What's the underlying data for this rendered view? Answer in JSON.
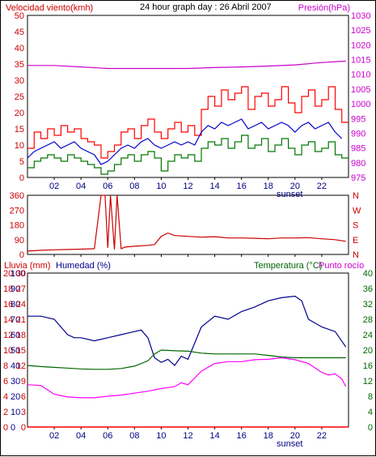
{
  "header": {
    "left_label": "Velocidad viento(kmh)",
    "title": "24 hour graph day : 26 Abril 2007",
    "right_label": "Presión(hPa)"
  },
  "colors": {
    "wind_gust": "#ff0000",
    "wind_avg": "#0000cc",
    "wind_min": "#007700",
    "pressure": "#cc00cc",
    "direction": "#cc0000",
    "humidity": "#00008b",
    "temperature": "#006600",
    "dewpoint": "#ff00ff",
    "rain": "#ff0000",
    "label_left_top": "#cc0000",
    "label_right_top": "#cc00cc",
    "label_humidity": "#00008b",
    "label_rain": "#cc0000",
    "label_temp": "#006600",
    "label_dew": "#cc00cc",
    "axis_time": "#000080"
  },
  "x_ticks": [
    "02",
    "04",
    "06",
    "08",
    "10",
    "12",
    "14",
    "16",
    "18",
    "20",
    "22"
  ],
  "sunset_label": "sunset",
  "chart_data": [
    {
      "type": "line",
      "title": "24 hour graph day : 26 Abril 2007",
      "x_unit": "hour",
      "xlim": [
        0,
        24
      ],
      "y_left": {
        "label": "Velocidad viento(kmh)",
        "ticks": [
          0,
          5,
          10,
          15,
          20,
          25,
          30,
          35,
          40,
          45,
          50
        ],
        "ylim": [
          0,
          50
        ]
      },
      "y_right": {
        "label": "Presión(hPa)",
        "ticks": [
          975,
          980,
          985,
          990,
          995,
          1000,
          1005,
          1010,
          1015,
          1020,
          1025,
          1030
        ],
        "ylim": [
          975,
          1030
        ]
      },
      "series": [
        {
          "key": "gust",
          "axis": "left",
          "x": [
            0,
            0.5,
            1,
            1.5,
            2,
            2.5,
            3,
            3.5,
            4,
            4.5,
            5,
            5.5,
            6,
            6.5,
            7,
            7.5,
            8,
            8.5,
            9,
            9.5,
            10,
            10.5,
            11,
            11.5,
            12,
            12.5,
            13,
            13.5,
            14,
            14.5,
            15,
            15.5,
            16,
            16.5,
            17,
            17.5,
            18,
            18.5,
            19,
            19.5,
            20,
            20.5,
            21,
            21.5,
            22,
            22.5,
            23,
            23.5
          ],
          "y": [
            9,
            14,
            12,
            15,
            13,
            16,
            14,
            15,
            12,
            11,
            10,
            6,
            8,
            10,
            14,
            15,
            12,
            16,
            18,
            14,
            12,
            15,
            17,
            14,
            16,
            13,
            21,
            25,
            22,
            27,
            24,
            26,
            28,
            21,
            25,
            26,
            22,
            24,
            28,
            23,
            20,
            25,
            27,
            22,
            24,
            28,
            21,
            17
          ]
        },
        {
          "key": "avg",
          "axis": "left",
          "x": [
            0,
            0.5,
            1,
            1.5,
            2,
            2.5,
            3,
            3.5,
            4,
            4.5,
            5,
            5.5,
            6,
            6.5,
            7,
            7.5,
            8,
            8.5,
            9,
            9.5,
            10,
            10.5,
            11,
            11.5,
            12,
            12.5,
            13,
            13.5,
            14,
            14.5,
            15,
            15.5,
            16,
            16.5,
            17,
            17.5,
            18,
            18.5,
            19,
            19.5,
            20,
            20.5,
            21,
            21.5,
            22,
            22.5,
            23,
            23.5
          ],
          "y": [
            6,
            8,
            9,
            10,
            11,
            9,
            10,
            11,
            9,
            8,
            7,
            4,
            5,
            7,
            9,
            10,
            9,
            11,
            12,
            10,
            9,
            10,
            11,
            10,
            11,
            10,
            14,
            16,
            15,
            17,
            16,
            17,
            18,
            15,
            16,
            17,
            15,
            16,
            17,
            16,
            14,
            16,
            17,
            15,
            16,
            17,
            14,
            12
          ]
        },
        {
          "key": "min",
          "axis": "left",
          "x": [
            0,
            0.5,
            1,
            1.5,
            2,
            2.5,
            3,
            3.5,
            4,
            4.5,
            5,
            5.5,
            6,
            6.5,
            7,
            7.5,
            8,
            8.5,
            9,
            9.5,
            10,
            10.5,
            11,
            11.5,
            12,
            12.5,
            13,
            13.5,
            14,
            14.5,
            15,
            15.5,
            16,
            16.5,
            17,
            17.5,
            18,
            18.5,
            19,
            19.5,
            20,
            20.5,
            21,
            21.5,
            22,
            22.5,
            23,
            23.5
          ],
          "y": [
            3,
            5,
            6,
            7,
            6,
            5,
            7,
            6,
            5,
            4,
            3,
            1,
            2,
            4,
            6,
            7,
            5,
            7,
            8,
            6,
            2,
            5,
            7,
            6,
            7,
            5,
            9,
            11,
            10,
            12,
            9,
            11,
            13,
            9,
            10,
            12,
            8,
            10,
            12,
            9,
            7,
            10,
            11,
            8,
            9,
            11,
            7,
            6
          ]
        },
        {
          "key": "pressure",
          "axis": "right",
          "x": [
            0,
            2,
            4,
            6,
            8,
            10,
            12,
            14,
            16,
            18,
            20,
            22,
            23.8
          ],
          "y": [
            1013,
            1013,
            1012.5,
            1012,
            1012,
            1012,
            1012,
            1012.3,
            1012.5,
            1012.8,
            1013.2,
            1014,
            1014.5
          ]
        }
      ]
    },
    {
      "type": "line",
      "x_unit": "hour",
      "xlim": [
        0,
        24
      ],
      "y_left": {
        "ticks": [
          0,
          90,
          180,
          270,
          360
        ],
        "ylim": [
          0,
          360
        ]
      },
      "y_right": {
        "ticks": [
          "N",
          "E",
          "S",
          "W",
          "N"
        ]
      },
      "series": [
        {
          "key": "direction",
          "x": [
            0,
            1,
            2,
            3,
            4,
            5,
            5.5,
            5.8,
            6,
            6.2,
            6.5,
            6.7,
            7,
            7.3,
            8,
            9,
            9.5,
            10,
            10.5,
            11,
            12,
            13,
            14,
            15,
            16,
            17,
            18,
            19,
            20,
            21,
            22,
            23,
            23.8
          ],
          "y": [
            20,
            25,
            28,
            30,
            32,
            35,
            360,
            360,
            40,
            360,
            30,
            360,
            35,
            45,
            50,
            55,
            60,
            110,
            130,
            115,
            110,
            105,
            108,
            100,
            100,
            98,
            95,
            100,
            100,
            102,
            95,
            90,
            80
          ]
        }
      ]
    },
    {
      "type": "line",
      "x_unit": "hour",
      "xlim": [
        0,
        24
      ],
      "y_rain": {
        "label": "Lluvia (mm)",
        "ticks": [
          0,
          2,
          4,
          6,
          8,
          10,
          12,
          14,
          16,
          18,
          20
        ],
        "ylim": [
          0,
          20
        ]
      },
      "y_humidity": {
        "label": "Humedad (%)",
        "ticks": [
          0,
          10,
          20,
          30,
          40,
          50,
          60,
          70,
          80,
          90,
          100
        ],
        "ylim": [
          0,
          100
        ]
      },
      "y_left_inner": {
        "ticks": [
          0,
          3,
          6,
          9,
          12,
          15,
          18,
          21,
          24,
          27,
          30
        ],
        "ylim": [
          0,
          30
        ]
      },
      "y_right": {
        "label": "Temperatura (°C)",
        "label2": "Punto rocío",
        "ticks": [
          0,
          4,
          8,
          12,
          16,
          20,
          24,
          28,
          32,
          36,
          40
        ],
        "ylim": [
          0,
          40
        ]
      },
      "series": [
        {
          "key": "humidity",
          "axis": "humidity",
          "x": [
            0,
            1,
            2,
            3,
            3.5,
            4,
            5,
            6,
            7,
            8,
            8.5,
            9,
            9.5,
            10,
            10.5,
            11,
            11.5,
            12,
            13,
            14,
            15,
            16,
            17,
            18,
            19,
            20,
            20.5,
            21,
            22,
            23,
            23.8
          ],
          "y": [
            72,
            72,
            70,
            60,
            58,
            58,
            56,
            58,
            60,
            62,
            63,
            58,
            45,
            42,
            44,
            40,
            46,
            44,
            65,
            72,
            70,
            75,
            78,
            82,
            84,
            85,
            82,
            70,
            65,
            62,
            52
          ]
        },
        {
          "key": "temperature",
          "axis": "right",
          "x": [
            0,
            1,
            2,
            3,
            4,
            5,
            6,
            7,
            8,
            9,
            9.5,
            10,
            11,
            12,
            13,
            14,
            15,
            16,
            17,
            18,
            19,
            20,
            21,
            22,
            23,
            23.8
          ],
          "y": [
            16,
            15.7,
            15.5,
            15.3,
            15.1,
            15,
            15,
            15.2,
            15.8,
            17.2,
            19,
            20,
            19.8,
            19.7,
            19.2,
            19,
            19,
            19,
            19,
            18.6,
            18.2,
            18,
            18,
            18,
            18,
            18
          ]
        },
        {
          "key": "dewpoint",
          "axis": "right",
          "x": [
            0,
            1,
            2,
            3,
            4,
            5,
            6,
            7,
            8,
            9,
            10,
            11,
            11.5,
            12,
            13,
            14,
            15,
            16,
            17,
            18,
            19,
            20,
            21,
            22,
            22.5,
            23,
            23.5,
            23.8
          ],
          "y": [
            11,
            10.8,
            8.5,
            7.8,
            7.6,
            7.6,
            8,
            8.3,
            8.8,
            9.3,
            10,
            10.5,
            11.5,
            11,
            14.5,
            16.5,
            17,
            17,
            17.5,
            17.6,
            18,
            17.5,
            16.5,
            14.2,
            13.5,
            13.8,
            12.5,
            10.5
          ]
        },
        {
          "key": "rain",
          "axis": "rain",
          "x": [
            0,
            24
          ],
          "y": [
            0,
            0
          ]
        }
      ]
    }
  ],
  "mid_left_ticks": [
    "0",
    "90",
    "180",
    "270",
    "360"
  ],
  "mid_right_ticks": [
    "N",
    "E",
    "S",
    "W",
    "N"
  ],
  "bottom_labels": {
    "rain": "Lluvia (mm)",
    "humidity": "Humedad (%)",
    "temperature": "Temperatura (°C)",
    "dewpoint": "Punto rocío"
  }
}
